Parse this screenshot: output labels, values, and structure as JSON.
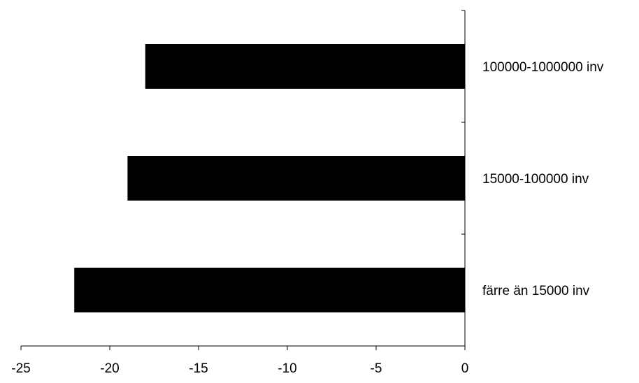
{
  "chart_data": {
    "type": "bar",
    "orientation": "horizontal",
    "title": "",
    "xlabel": "",
    "ylabel": "",
    "categories": [
      "100000-1000000 inv",
      "15000-100000 inv",
      "färre än 15000 inv"
    ],
    "values": [
      -18,
      -19,
      -22
    ],
    "xlim": [
      -25,
      0
    ],
    "xticks": [
      "-25",
      "-20",
      "-15",
      "-10",
      "-5",
      "0"
    ],
    "grid": false,
    "legend": "none",
    "bar_color": "#000000",
    "category_label_side": "right"
  }
}
